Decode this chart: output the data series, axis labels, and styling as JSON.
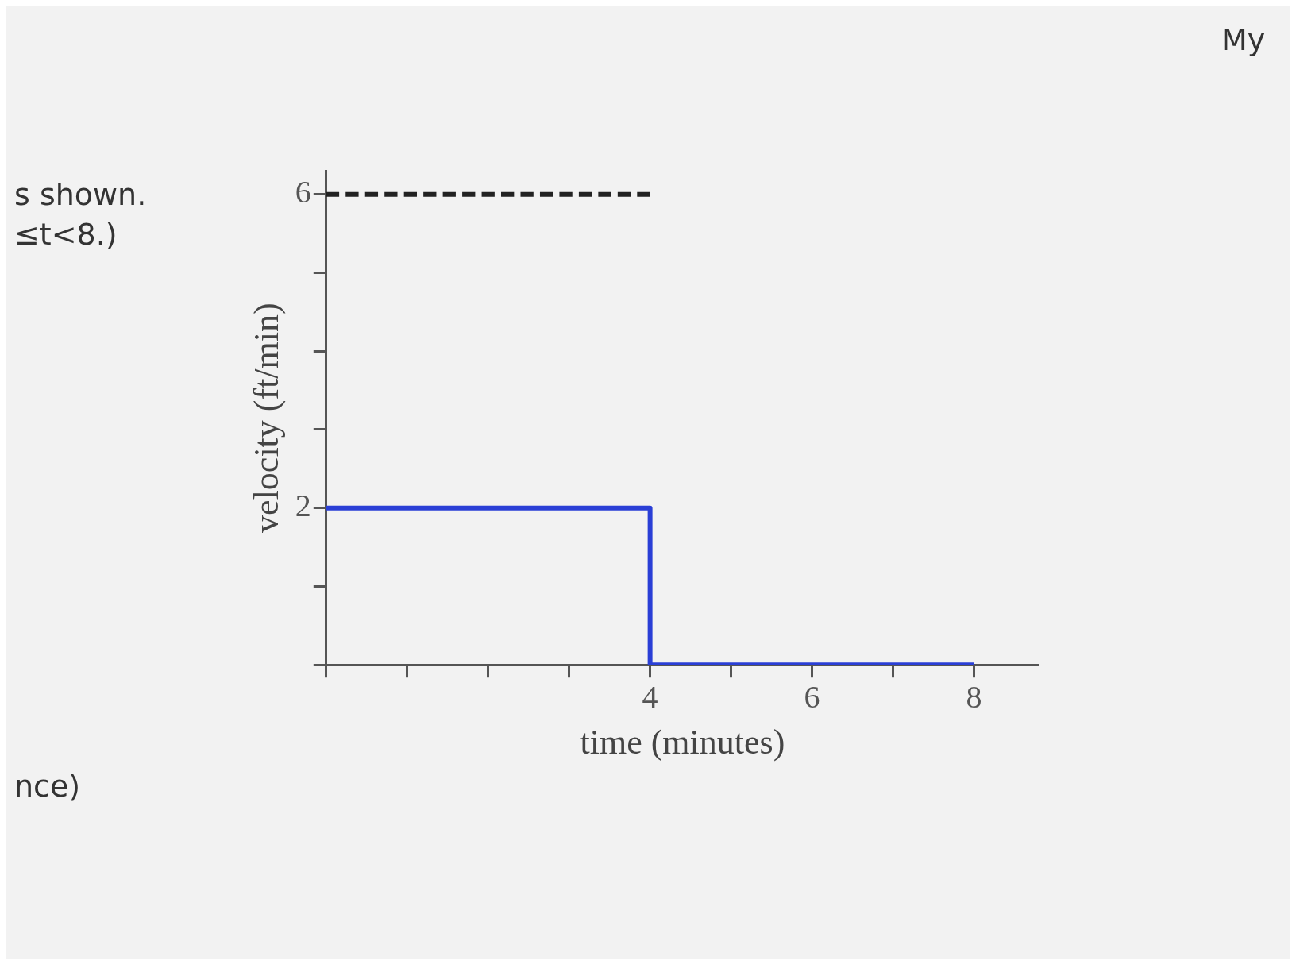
{
  "chart_data": {
    "type": "step",
    "xlabel": "time (minutes)",
    "ylabel": "velocity (ft/min)",
    "annotations": [
      "s shown.",
      "≤t<8.)",
      "nce)",
      "My"
    ],
    "series": [
      {
        "type": "step",
        "color": "#2a3fd6",
        "x": [
          0,
          4,
          8
        ],
        "values": [
          2,
          0,
          0
        ]
      },
      {
        "type": "line",
        "color": "#222222",
        "line_style": "dashed",
        "x": [
          0,
          4
        ],
        "values": [
          6,
          6
        ]
      }
    ],
    "marker": "none",
    "xlim": [
      0,
      8.8
    ],
    "xticks": [
      {
        "value": 0,
        "label": null
      },
      {
        "value": 1,
        "label": null
      },
      {
        "value": 2,
        "label": null
      },
      {
        "value": 3,
        "label": null
      },
      4,
      {
        "value": 5,
        "label": null
      },
      6,
      {
        "value": 7,
        "label": null
      },
      8
    ],
    "ylim": [
      0,
      6.3
    ],
    "yticks": [
      {
        "value": 0,
        "label": null
      },
      {
        "value": 1,
        "label": null
      },
      2,
      {
        "value": 3,
        "label": null
      },
      {
        "value": 4,
        "label": null
      },
      {
        "value": 5,
        "label": null
      },
      6
    ]
  }
}
